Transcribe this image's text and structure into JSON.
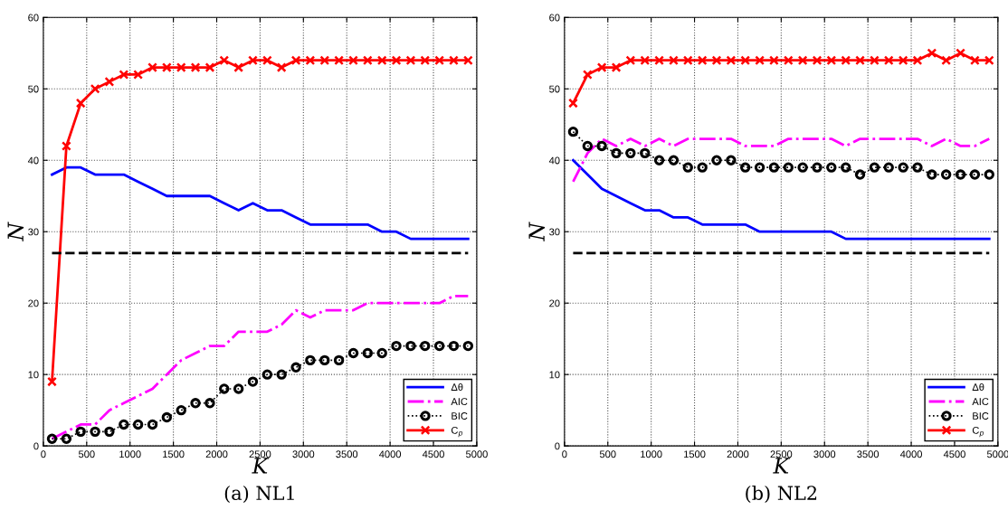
{
  "chart_data": [
    {
      "type": "line",
      "title": "(a) NL1",
      "xlabel": "K",
      "ylabel": "N",
      "x": [
        100,
        266,
        431,
        597,
        762,
        928,
        1093,
        1259,
        1424,
        1590,
        1755,
        1921,
        2086,
        2252,
        2417,
        2583,
        2748,
        2914,
        3079,
        3245,
        3410,
        3576,
        3741,
        3907,
        4072,
        4238,
        4403,
        4569,
        4734,
        4900
      ],
      "xlim": [
        0,
        5000
      ],
      "xticks": [
        0,
        500,
        1000,
        1500,
        2000,
        2500,
        3000,
        3500,
        4000,
        4500,
        5000
      ],
      "ylim": [
        0,
        60
      ],
      "yticks": [
        0,
        10,
        20,
        30,
        40,
        50,
        60
      ],
      "grid": true,
      "legend": "bottom right",
      "series": [
        {
          "name": "Δθ",
          "color": "#0000ff",
          "line_style": "solid",
          "marker": "none",
          "values": [
            38,
            39,
            39,
            38,
            38,
            38,
            37,
            36,
            35,
            35,
            35,
            35,
            34,
            33,
            34,
            33,
            33,
            32,
            31,
            31,
            31,
            31,
            31,
            30,
            30,
            29,
            29,
            29,
            29,
            29
          ]
        },
        {
          "name": "AIC",
          "color": "#ff00ff",
          "line_style": "dashdot",
          "marker": "none",
          "values": [
            1,
            2,
            3,
            3,
            5,
            6,
            7,
            8,
            10,
            12,
            13,
            14,
            14,
            16,
            16,
            16,
            17,
            19,
            18,
            19,
            19,
            19,
            20,
            20,
            20,
            20,
            20,
            20,
            21,
            21
          ]
        },
        {
          "name": "BIC",
          "color": "#000000",
          "line_style": "dotted",
          "marker": "circle",
          "values": [
            1,
            1,
            2,
            2,
            2,
            3,
            3,
            3,
            4,
            5,
            6,
            6,
            8,
            8,
            9,
            10,
            10,
            11,
            12,
            12,
            12,
            13,
            13,
            13,
            14,
            14,
            14,
            14,
            14,
            14
          ]
        },
        {
          "name": "C$_{p}$",
          "color": "#ff0000",
          "line_style": "solid",
          "marker": "cross",
          "values": [
            9,
            42,
            48,
            50,
            51,
            52,
            52,
            53,
            53,
            53,
            53,
            53,
            54,
            53,
            54,
            54,
            53,
            54,
            54,
            54,
            54,
            54,
            54,
            54,
            54,
            54,
            54,
            54,
            54,
            54
          ]
        }
      ],
      "ref_lines": [
        {
          "axis": "y",
          "value": 27,
          "color": "#000000",
          "line_style": "dashed"
        }
      ]
    },
    {
      "type": "line",
      "title": "(b) NL2",
      "xlabel": "K",
      "ylabel": "N",
      "x": [
        100,
        266,
        431,
        597,
        762,
        928,
        1093,
        1259,
        1424,
        1590,
        1755,
        1921,
        2086,
        2252,
        2417,
        2583,
        2748,
        2914,
        3079,
        3245,
        3410,
        3576,
        3741,
        3907,
        4072,
        4238,
        4403,
        4569,
        4734,
        4900
      ],
      "xlim": [
        0,
        5000
      ],
      "xticks": [
        0,
        500,
        1000,
        1500,
        2000,
        2500,
        3000,
        3500,
        4000,
        4500,
        5000
      ],
      "ylim": [
        0,
        60
      ],
      "yticks": [
        0,
        10,
        20,
        30,
        40,
        50,
        60
      ],
      "grid": true,
      "legend": "bottom right",
      "series": [
        {
          "name": "Δθ",
          "color": "#0000ff",
          "line_style": "solid",
          "marker": "none",
          "values": [
            40,
            38,
            36,
            35,
            34,
            33,
            33,
            32,
            32,
            31,
            31,
            31,
            31,
            30,
            30,
            30,
            30,
            30,
            30,
            29,
            29,
            29,
            29,
            29,
            29,
            29,
            29,
            29,
            29,
            29
          ]
        },
        {
          "name": "AIC",
          "color": "#ff00ff",
          "line_style": "dashdot",
          "marker": "none",
          "values": [
            37,
            41,
            43,
            42,
            43,
            42,
            43,
            42,
            43,
            43,
            43,
            43,
            42,
            42,
            42,
            43,
            43,
            43,
            43,
            42,
            43,
            43,
            43,
            43,
            43,
            42,
            43,
            42,
            42,
            43
          ]
        },
        {
          "name": "BIC",
          "color": "#000000",
          "line_style": "dotted",
          "marker": "circle",
          "values": [
            44,
            42,
            42,
            41,
            41,
            41,
            40,
            40,
            39,
            39,
            40,
            40,
            39,
            39,
            39,
            39,
            39,
            39,
            39,
            39,
            38,
            39,
            39,
            39,
            39,
            38,
            38,
            38,
            38,
            38
          ]
        },
        {
          "name": "C$_{p}$",
          "color": "#ff0000",
          "line_style": "solid",
          "marker": "cross",
          "values": [
            48,
            52,
            53,
            53,
            54,
            54,
            54,
            54,
            54,
            54,
            54,
            54,
            54,
            54,
            54,
            54,
            54,
            54,
            54,
            54,
            54,
            54,
            54,
            54,
            54,
            55,
            54,
            55,
            54,
            54
          ]
        }
      ],
      "ref_lines": [
        {
          "axis": "y",
          "value": 27,
          "color": "#000000",
          "line_style": "dashed"
        }
      ]
    }
  ]
}
